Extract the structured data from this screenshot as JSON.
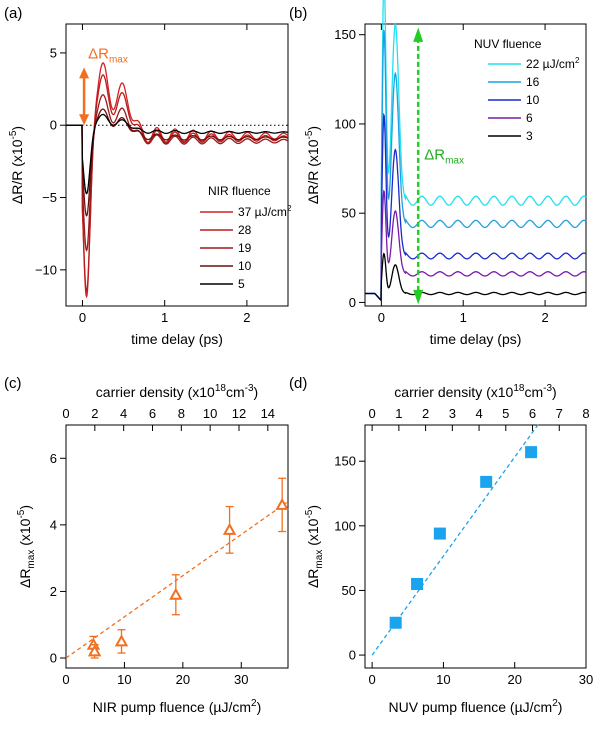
{
  "chart_data": [
    {
      "panel": "(a)",
      "type": "line",
      "xlabel": "time delay (ps)",
      "ylabel": "ΔR/R (x10",
      "ylabel_exp": "-5",
      "ylabel_close": ")",
      "xlim": [
        -0.2,
        2.5
      ],
      "ylim": [
        -12.5,
        7.0
      ],
      "x_ticks": [
        0,
        1,
        2
      ],
      "y_ticks": [
        -10,
        -5,
        0,
        5
      ],
      "annotation": {
        "text": "ΔR",
        "sub": "max",
        "color": "#f07020"
      },
      "legend": {
        "title": "NIR fluence",
        "placement": "center-right",
        "labels": [
          "37 µJ/cm",
          "28",
          "19",
          "10",
          "5"
        ],
        "first_label_sup": "2"
      },
      "series": [
        {
          "name": "37",
          "color": "#d42020",
          "dip": -11.9,
          "peak": 4.3,
          "tail": -0.75,
          "osc": 0.9
        },
        {
          "name": "28",
          "color": "#b81e1e",
          "dip": -11.5,
          "peak": 3.6,
          "tail": -0.9,
          "osc": 0.75
        },
        {
          "name": "19",
          "color": "#9a1818",
          "dip": -8.6,
          "peak": 2.4,
          "tail": -1.1,
          "osc": 0.55
        },
        {
          "name": "10",
          "color": "#6a0f0f",
          "dip": -6.2,
          "peak": 1.4,
          "tail": -0.9,
          "osc": 0.35
        },
        {
          "name": "5",
          "color": "#000000",
          "dip": -4.7,
          "peak": 0.9,
          "tail": -0.5,
          "osc": 0.2
        }
      ]
    },
    {
      "panel": "(b)",
      "type": "line",
      "xlabel": "time delay (ps)",
      "ylabel": "ΔR/R (x10",
      "ylabel_exp": "-5",
      "ylabel_close": ")",
      "xlim": [
        -0.2,
        2.5
      ],
      "ylim": [
        -2,
        156
      ],
      "x_ticks": [
        0,
        1,
        2
      ],
      "y_ticks": [
        0,
        50,
        100,
        150
      ],
      "marker_x": 0.45,
      "annotation": {
        "text": "ΔR",
        "sub": "max",
        "color": "#22aa22"
      },
      "legend": {
        "title": "NUV fluence",
        "placement": "top-right",
        "labels": [
          "22 µJ/cm",
          "16",
          "10",
          "6",
          "3"
        ],
        "first_label_sup": "2"
      },
      "series": [
        {
          "name": "22",
          "color": "#22e0f0",
          "peak": 155,
          "tail": 57,
          "osc": 2.5
        },
        {
          "name": "16",
          "color": "#1ea0e0",
          "peak": 132,
          "tail": 44,
          "osc": 2.0
        },
        {
          "name": "10",
          "color": "#1a2acc",
          "peak": 93,
          "tail": 26,
          "osc": 1.6
        },
        {
          "name": "6",
          "color": "#7a1aa8",
          "peak": 55,
          "tail": 16,
          "osc": 1.2
        },
        {
          "name": "3",
          "color": "#000000",
          "peak": 25,
          "tail": 5,
          "osc": 0.6
        }
      ]
    },
    {
      "panel": "(c)",
      "type": "scatter",
      "xlabel": "NIR pump fluence (µJ/cm",
      "xlabel_sup": "2",
      "xlabel_close": ")",
      "ylabel": "ΔR",
      "ylabel_sub": "max",
      "ylabel_rest": " (x10",
      "ylabel_exp": "-5",
      "ylabel_close": ")",
      "top_label": "carrier density (x10",
      "top_label_exp1": "18",
      "top_label_mid": "cm",
      "top_label_exp2": "-3",
      "top_label_close": ")",
      "xlim": [
        0,
        38
      ],
      "ylim": [
        -0.3,
        7.0
      ],
      "top_xlim": [
        0,
        15.4
      ],
      "x_ticks": [
        0,
        10,
        20,
        30
      ],
      "y_ticks": [
        0,
        2,
        4,
        6
      ],
      "top_ticks": [
        0,
        2,
        4,
        6,
        8,
        10,
        12,
        14
      ],
      "color": "#f07020",
      "points": [
        {
          "x": 4.7,
          "y": 0.4,
          "err": 0.25
        },
        {
          "x": 4.9,
          "y": 0.2,
          "err": 0.2
        },
        {
          "x": 9.5,
          "y": 0.5,
          "err": 0.35
        },
        {
          "x": 18.8,
          "y": 1.9,
          "err": 0.6
        },
        {
          "x": 28.0,
          "y": 3.85,
          "err": 0.7
        },
        {
          "x": 37.0,
          "y": 4.6,
          "err": 0.8
        }
      ],
      "fit": {
        "x": [
          0,
          38
        ],
        "y": [
          0,
          4.7
        ]
      }
    },
    {
      "panel": "(d)",
      "type": "scatter",
      "xlabel": "NUV pump fluence (µJ/cm",
      "xlabel_sup": "2",
      "xlabel_close": ")",
      "ylabel": "ΔR",
      "ylabel_sub": "max",
      "ylabel_rest": " (x10",
      "ylabel_exp": "-5",
      "ylabel_close": ")",
      "top_label": "carrier density (x10",
      "top_label_exp1": "18",
      "top_label_mid": "cm",
      "top_label_exp2": "-3",
      "top_label_close": ")",
      "xlim": [
        -1,
        30
      ],
      "ylim": [
        -10,
        178
      ],
      "top_xlim": [
        0,
        8
      ],
      "x_ticks": [
        0,
        10,
        20,
        30
      ],
      "y_ticks": [
        0,
        50,
        100,
        150
      ],
      "top_ticks": [
        0,
        1,
        2,
        3,
        4,
        5,
        6,
        7,
        8
      ],
      "color": "#1aa3ee",
      "points": [
        {
          "x": 3.3,
          "y": 25
        },
        {
          "x": 6.3,
          "y": 55
        },
        {
          "x": 9.5,
          "y": 94
        },
        {
          "x": 16.0,
          "y": 134
        },
        {
          "x": 22.3,
          "y": 157
        }
      ],
      "fit": {
        "x": [
          0,
          23.5
        ],
        "y": [
          0,
          180
        ]
      }
    }
  ]
}
